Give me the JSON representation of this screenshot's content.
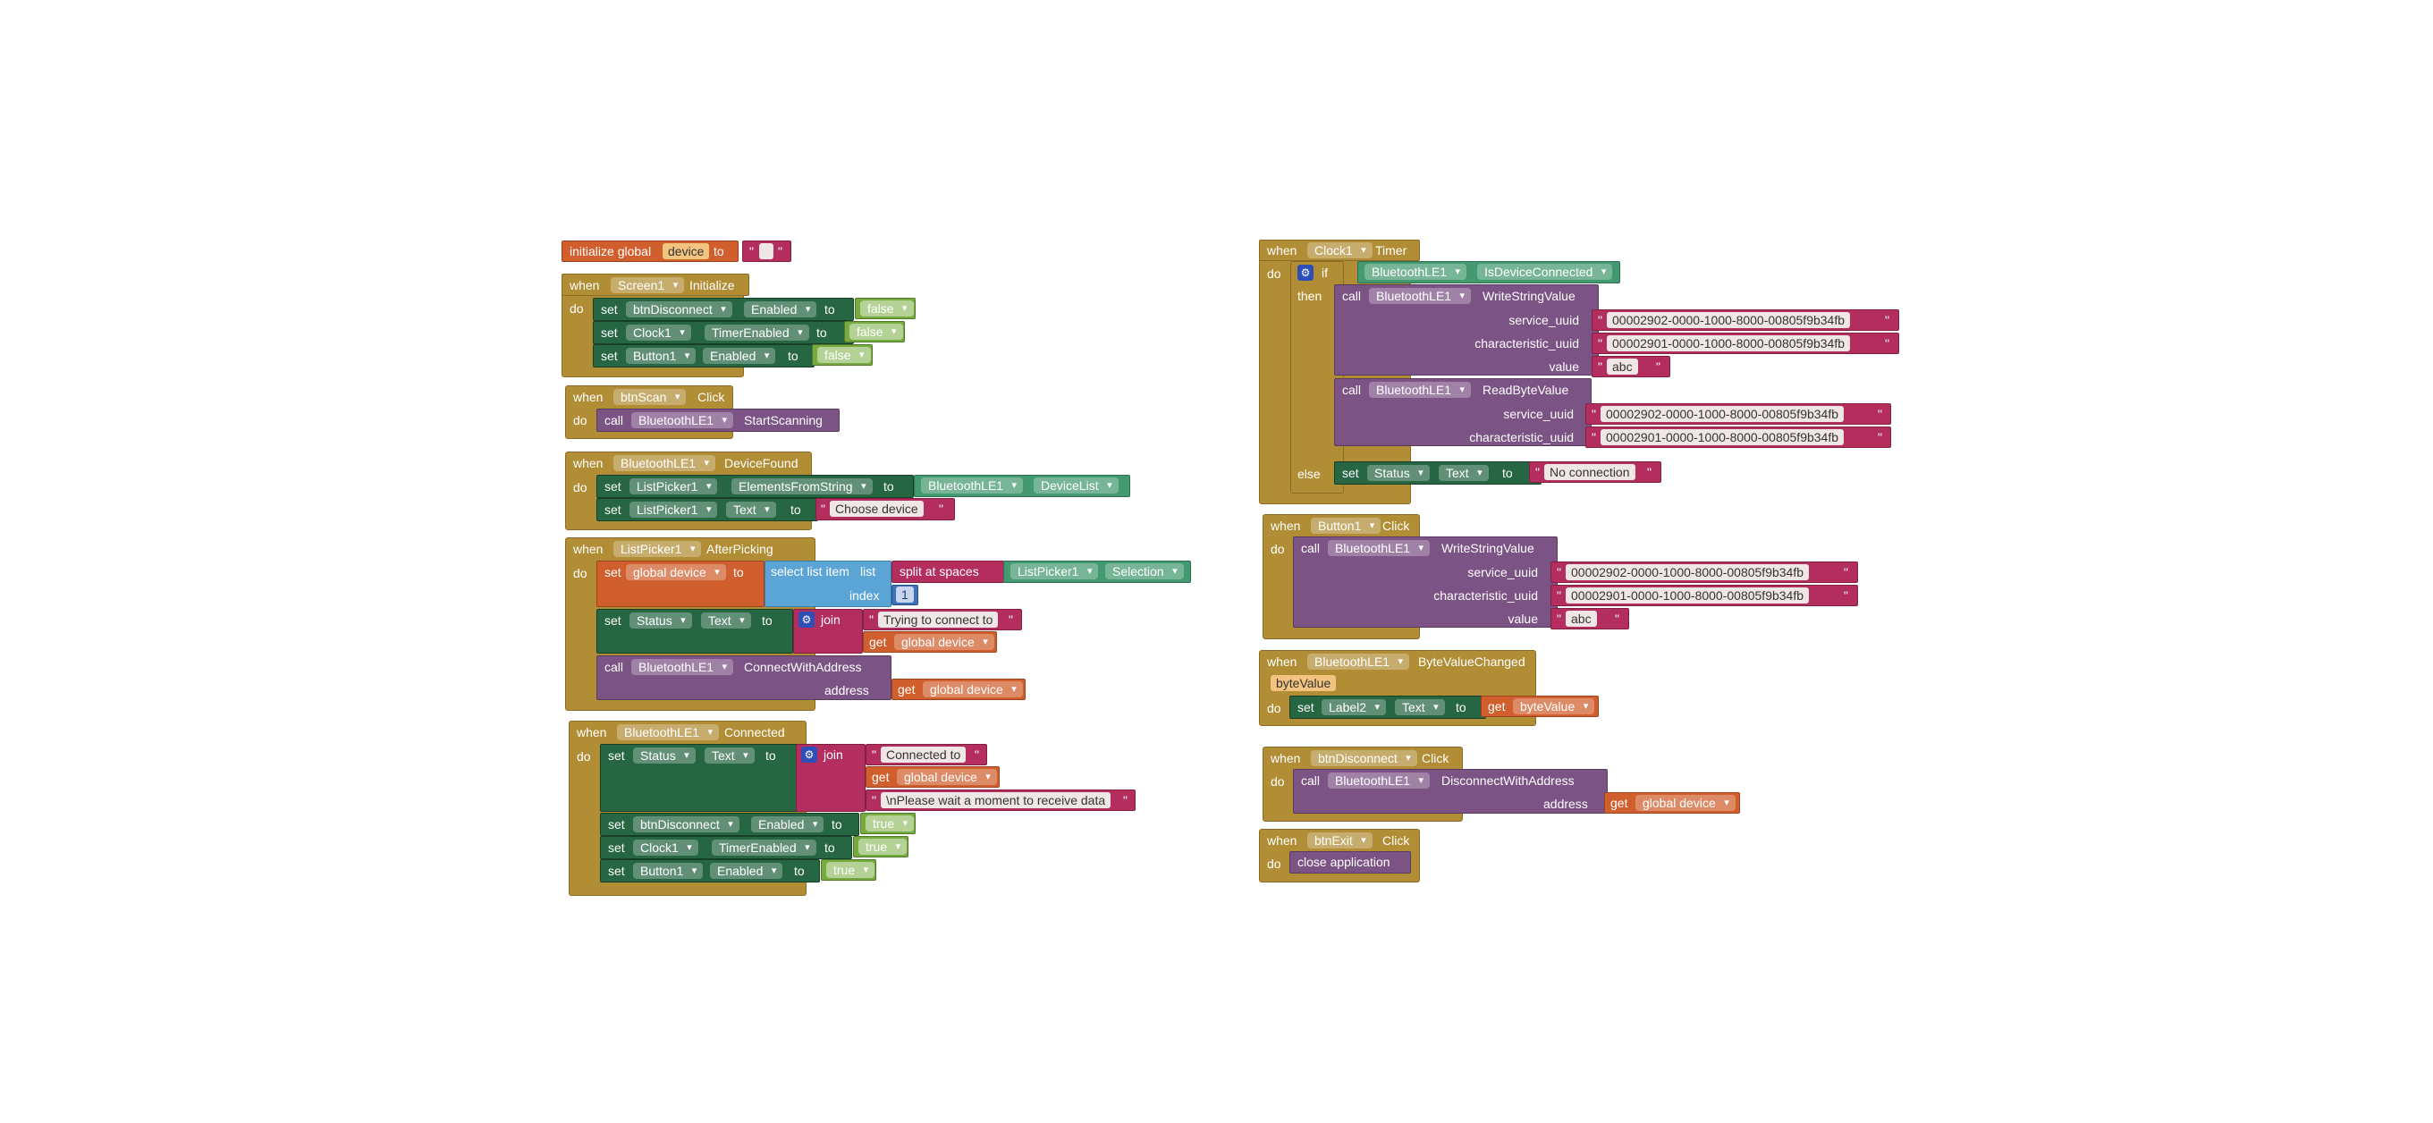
{
  "kw": {
    "initialize_global": "initialize global",
    "to": "to",
    "when": "when",
    "do": "do",
    "set": "set",
    "call": "call",
    "get": "get",
    "join": "join",
    "if": "if",
    "then": "then",
    "else": "else",
    "quote": "\"",
    "dot": ".",
    "select_list_item": "select list item",
    "list": "list",
    "index": "index",
    "split_at_spaces": "split at spaces",
    "address": "address",
    "service_uuid": "service_uuid",
    "characteristic_uuid": "characteristic_uuid",
    "value": "value",
    "close_application": "close application"
  },
  "gear_icon": "gear-icon",
  "colors": {
    "event": "#b18e35",
    "setter": "#266643",
    "method": "#7c5385",
    "text": "#b32d5e",
    "logic": "#77ab41",
    "variable": "#d05f2d",
    "list": "#5ba5d6",
    "property": "#439970",
    "math": "#3f71b5"
  },
  "blocks": {
    "init_global": {
      "var": "device"
    },
    "screen_init": {
      "component": "Screen1",
      "event": "Initialize",
      "s1_comp": "btnDisconnect",
      "s1_prop": "Enabled",
      "s1_val": "false",
      "s2_comp": "Clock1",
      "s2_prop": "TimerEnabled",
      "s2_val": "false",
      "s3_comp": "Button1",
      "s3_prop": "Enabled",
      "s3_val": "false"
    },
    "btnscan_click": {
      "component": "btnScan",
      "event": "Click",
      "c_comp": "BluetoothLE1",
      "c_method": "StartScanning"
    },
    "device_found": {
      "component": "BluetoothLE1",
      "event": "DeviceFound",
      "s1_comp": "ListPicker1",
      "s1_prop": "ElementsFromString",
      "s1_src": "BluetoothLE1",
      "s1_src_prop": "DeviceList",
      "s2_comp": "ListPicker1",
      "s2_prop": "Text",
      "s2_val": "Choose device"
    },
    "after_picking": {
      "component": "ListPicker1",
      "event": "AfterPicking",
      "set_var": "global device",
      "selection_comp": "ListPicker1",
      "selection_prop": "Selection",
      "index_val": "1",
      "s2_comp": "Status",
      "s2_prop": "Text",
      "join_text": "Trying to connect to",
      "join_get": "global device",
      "c_comp": "BluetoothLE1",
      "c_method": "ConnectWithAddress",
      "addr_get": "global device"
    },
    "connected": {
      "component": "BluetoothLE1",
      "event": "Connected",
      "s1_comp": "Status",
      "s1_prop": "Text",
      "j1": "Connected to",
      "j2_get": "global device",
      "j3": "\\nPlease wait a moment to receive data",
      "s2_comp": "btnDisconnect",
      "s2_prop": "Enabled",
      "s2_val": "true",
      "s3_comp": "Clock1",
      "s3_prop": "TimerEnabled",
      "s3_val": "true",
      "s4_comp": "Button1",
      "s4_prop": "Enabled",
      "s4_val": "true"
    },
    "clock_timer": {
      "component": "Clock1",
      "event": "Timer",
      "if_comp": "BluetoothLE1",
      "if_prop": "IsDeviceConnected",
      "c1_comp": "BluetoothLE1",
      "c1_method": "WriteStringValue",
      "c1_service": "00002902-0000-1000-8000-00805f9b34fb",
      "c1_char": "00002901-0000-1000-8000-00805f9b34fb",
      "c1_value": "abc",
      "c2_comp": "BluetoothLE1",
      "c2_method": "ReadByteValue",
      "c2_service": "00002902-0000-1000-8000-00805f9b34fb",
      "c2_char": "00002901-0000-1000-8000-00805f9b34fb",
      "else_comp": "Status",
      "else_prop": "Text",
      "else_val": "No connection"
    },
    "button1_click": {
      "component": "Button1",
      "event": "Click",
      "c_comp": "BluetoothLE1",
      "c_method": "WriteStringValue",
      "service": "00002902-0000-1000-8000-00805f9b34fb",
      "char": "00002901-0000-1000-8000-00805f9b34fb",
      "value": "abc"
    },
    "byte_changed": {
      "component": "BluetoothLE1",
      "event": "ByteValueChanged",
      "param": "byteValue",
      "s_comp": "Label2",
      "s_prop": "Text",
      "s_get": "byteValue"
    },
    "btndisconnect_click": {
      "component": "btnDisconnect",
      "event": "Click",
      "c_comp": "BluetoothLE1",
      "c_method": "DisconnectWithAddress",
      "addr_get": "global device"
    },
    "btnexit_click": {
      "component": "btnExit",
      "event": "Click"
    }
  }
}
